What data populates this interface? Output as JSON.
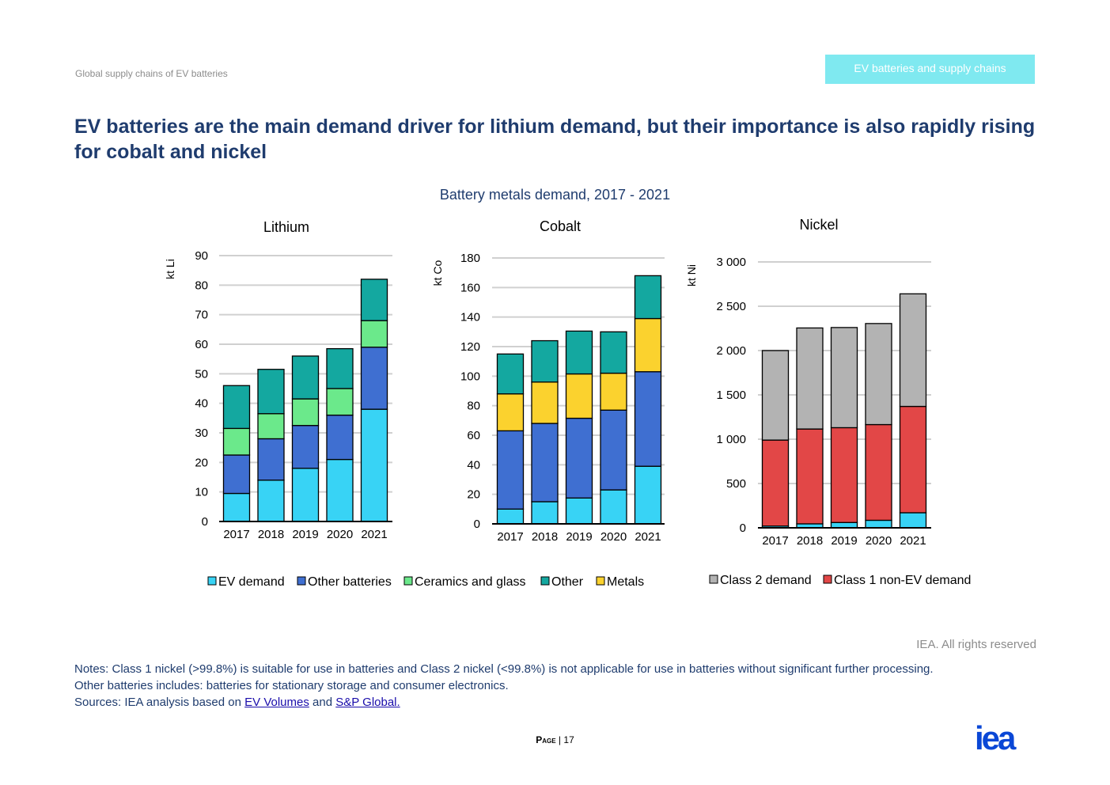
{
  "header": {
    "section": "Global supply chains of EV batteries",
    "badge": "EV batteries and supply chains"
  },
  "title": "EV batteries are the main demand driver for lithium demand, but their importance is also rapidly rising for cobalt and nickel",
  "figure_title": "Battery metals demand, 2017 - 2021",
  "colors": {
    "EV demand": "#38d3f5",
    "Other batteries": "#3f6fd1",
    "Ceramics and glass": "#6be98b",
    "Other": "#14a8a0",
    "Metals": "#fbd22e",
    "Class 2 demand": "#b3b3b3",
    "Class 1 non-EV demand": "#e24747"
  },
  "chart_data": [
    {
      "type": "bar",
      "stacked": true,
      "title": "Lithium",
      "ylabel": "kt Li",
      "categories": [
        "2017",
        "2018",
        "2019",
        "2020",
        "2021"
      ],
      "ylim": [
        0,
        90
      ],
      "yticks": [
        0,
        10,
        20,
        30,
        40,
        50,
        60,
        70,
        80,
        90
      ],
      "ytick_labels": [
        "0",
        "10",
        "20",
        "30",
        "40",
        "50",
        "60",
        "70",
        "80",
        "90"
      ],
      "series": [
        {
          "name": "EV demand",
          "values": [
            9.5,
            14,
            18,
            21,
            38
          ]
        },
        {
          "name": "Other batteries",
          "values": [
            13,
            14,
            14.5,
            15,
            21
          ]
        },
        {
          "name": "Ceramics and glass",
          "values": [
            9,
            8.5,
            9,
            9,
            9
          ]
        },
        {
          "name": "Other",
          "values": [
            14.5,
            15,
            14.5,
            13.5,
            14
          ]
        }
      ]
    },
    {
      "type": "bar",
      "stacked": true,
      "title": "Cobalt",
      "ylabel": "kt Co",
      "categories": [
        "2017",
        "2018",
        "2019",
        "2020",
        "2021"
      ],
      "ylim": [
        0,
        180
      ],
      "yticks": [
        0,
        20,
        40,
        60,
        80,
        100,
        120,
        140,
        160,
        180
      ],
      "ytick_labels": [
        "0",
        "20",
        "40",
        "60",
        "80",
        "100",
        "120",
        "140",
        "160",
        "180"
      ],
      "series": [
        {
          "name": "EV demand",
          "values": [
            10,
            15,
            17.5,
            23,
            39
          ]
        },
        {
          "name": "Other batteries",
          "values": [
            53,
            53,
            54,
            54,
            64
          ]
        },
        {
          "name": "Metals",
          "values": [
            25,
            28,
            30,
            25,
            36
          ]
        },
        {
          "name": "Other",
          "values": [
            27,
            28,
            29,
            28,
            29
          ]
        }
      ]
    },
    {
      "type": "bar",
      "stacked": true,
      "title": "Nickel",
      "ylabel": "kt Ni",
      "categories": [
        "2017",
        "2018",
        "2019",
        "2020",
        "2021"
      ],
      "ylim": [
        0,
        3000
      ],
      "yticks": [
        0,
        500,
        1000,
        1500,
        2000,
        2500,
        3000
      ],
      "ytick_labels": [
        "0",
        "500",
        "1 000",
        "1 500",
        "2 000",
        "2 500",
        "3 000"
      ],
      "series": [
        {
          "name": "EV demand",
          "values": [
            20,
            45,
            60,
            85,
            170
          ]
        },
        {
          "name": "Class 1 non-EV demand",
          "values": [
            970,
            1070,
            1070,
            1080,
            1200
          ]
        },
        {
          "name": "Class 2 demand",
          "values": [
            1010,
            1140,
            1130,
            1140,
            1270
          ]
        }
      ]
    }
  ],
  "legend_main": [
    "EV demand",
    "Other batteries",
    "Ceramics and glass",
    "Other",
    "Metals"
  ],
  "legend_nickel": [
    "Class 2 demand",
    "Class 1 non-EV demand"
  ],
  "rights": "IEA. All rights reserved",
  "notes": {
    "line1": "Notes: Class 1 nickel (>99.8%) is suitable for use in batteries and Class 2 nickel (<99.8%) is not applicable for use in batteries without significant further processing.",
    "line2": "Other batteries includes: batteries for stationary storage and consumer electronics.",
    "sources_prefix": "Sources: IEA analysis based on",
    "link1": "EV Volumes",
    "and": "and",
    "link2": "S&P Global."
  },
  "page": {
    "label": "Page",
    "number": "17"
  },
  "logo": {
    "text": "iea"
  }
}
